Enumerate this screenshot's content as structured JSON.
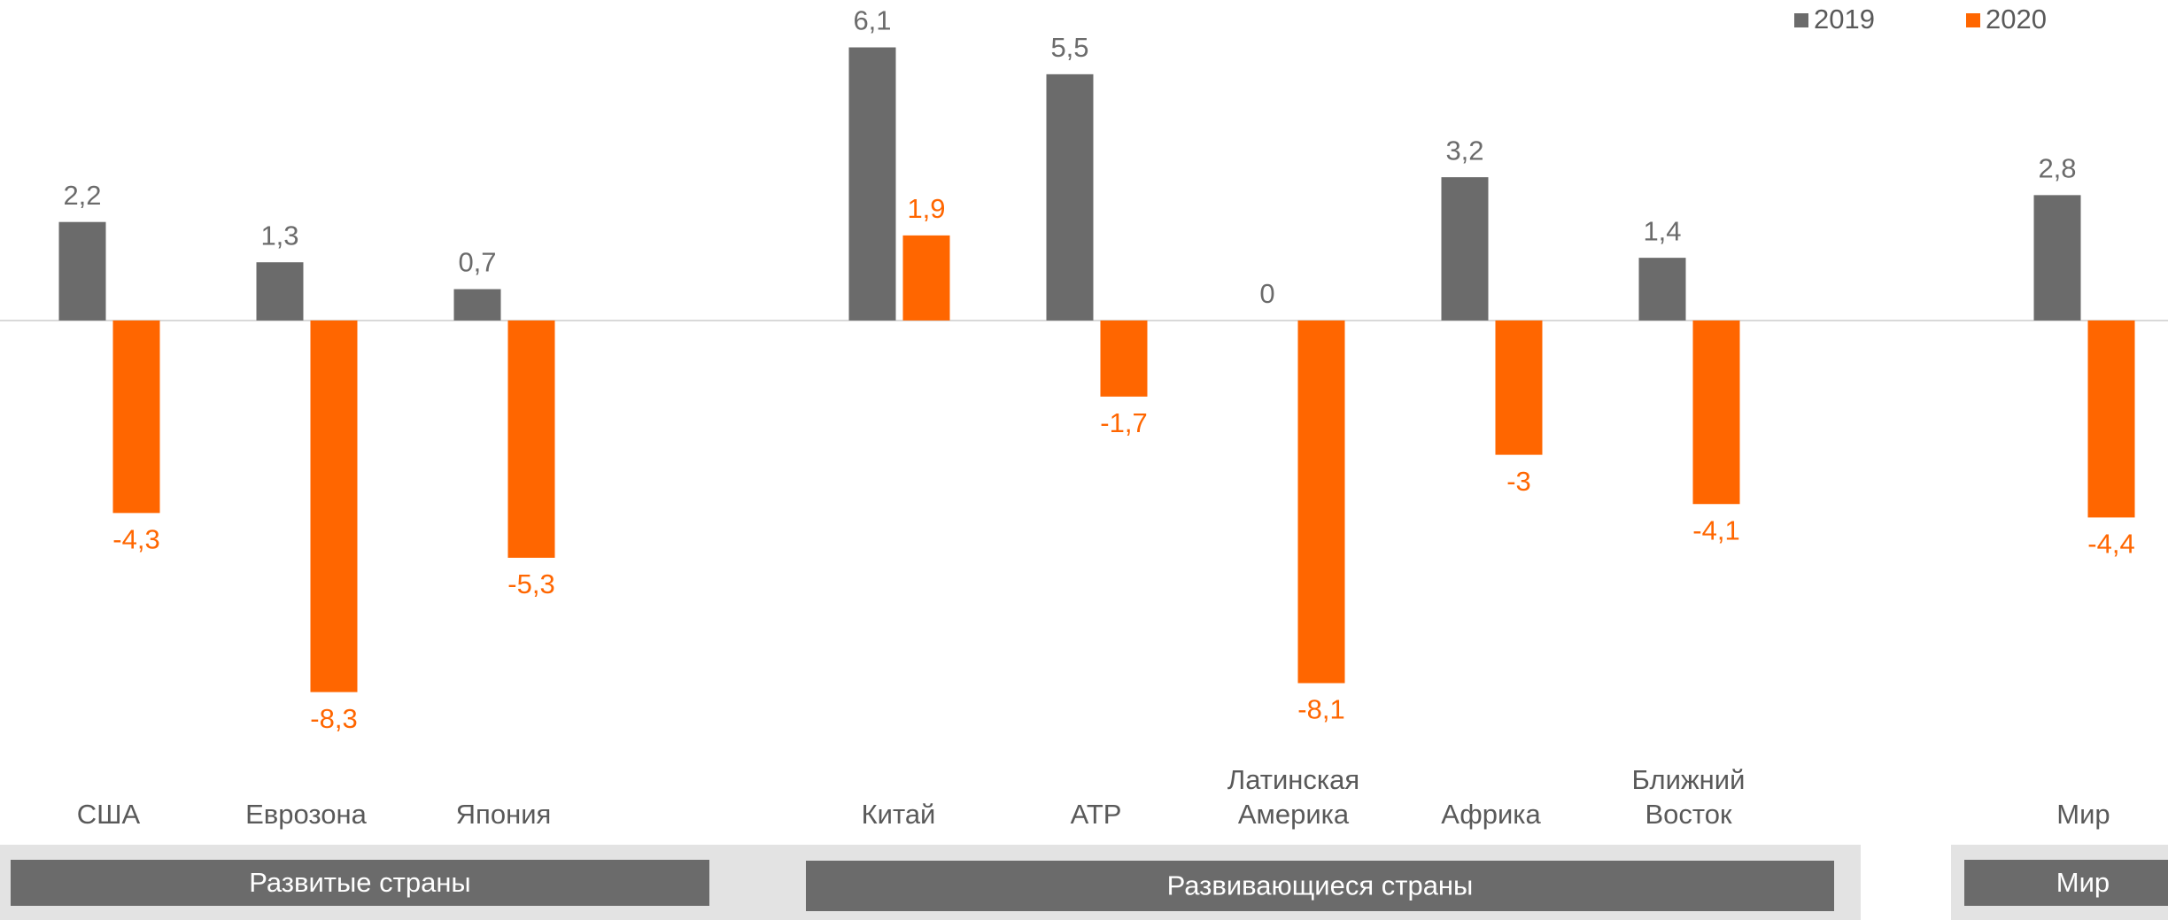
{
  "chart_data": {
    "type": "bar",
    "categories": [
      "США",
      "Еврозона",
      "Япония",
      null,
      "Китай",
      "АТР",
      "Латинская Америка",
      "Африка",
      "Ближний Восток",
      null,
      "Мир"
    ],
    "series": [
      {
        "name": "2019",
        "color": "#6b6b6b",
        "values": [
          2.2,
          1.3,
          0.7,
          null,
          6.1,
          5.5,
          0,
          3.2,
          1.4,
          null,
          2.8
        ],
        "value_labels": [
          "2,2",
          "1,3",
          "0,7",
          null,
          "6,1",
          "5,5",
          "0",
          "3,2",
          "1,4",
          null,
          "2,8"
        ]
      },
      {
        "name": "2020",
        "color": "#ff6600",
        "values": [
          -4.3,
          -8.3,
          -5.3,
          null,
          1.9,
          -1.7,
          -8.1,
          -3,
          -4.1,
          null,
          -4.4
        ],
        "value_labels": [
          "-4,3",
          "-8,3",
          "-5,3",
          null,
          "1,9",
          "-1,7",
          "-8,1",
          "-3",
          "-4,1",
          null,
          "-4,4"
        ]
      }
    ],
    "groups": [
      "Развитые страны",
      "Развивающиеся страны",
      "Мир"
    ],
    "ylim": [
      -9,
      7
    ],
    "legend": "top-right"
  }
}
